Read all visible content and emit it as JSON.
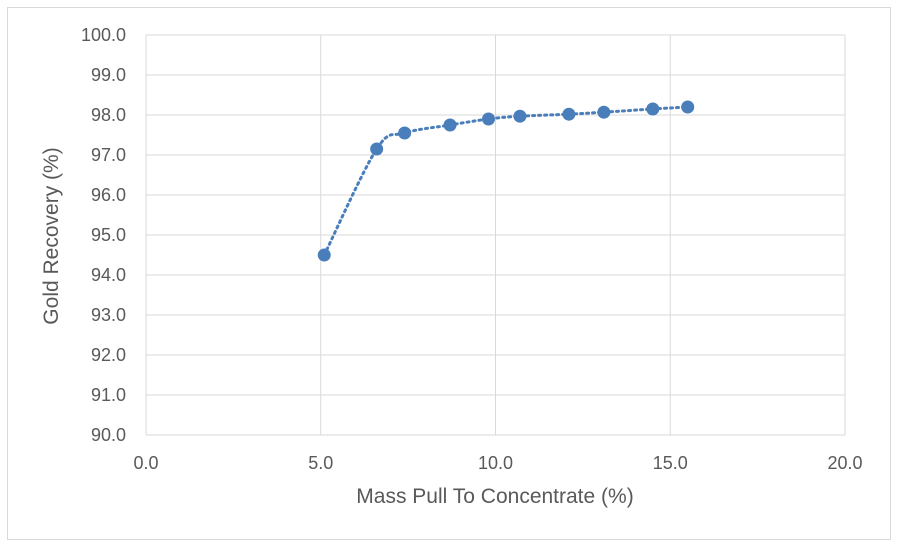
{
  "chart_data": {
    "type": "scatter",
    "xlabel": "Mass Pull To Concentrate (%)",
    "ylabel": "Gold Recovery (%)",
    "xlim": [
      0,
      20
    ],
    "ylim": [
      90,
      100
    ],
    "x_ticks": [
      "0.0",
      "5.0",
      "10.0",
      "15.0",
      "20.0"
    ],
    "y_ticks": [
      "90.0",
      "91.0",
      "92.0",
      "93.0",
      "94.0",
      "95.0",
      "96.0",
      "97.0",
      "98.0",
      "99.0",
      "100.0"
    ],
    "grid": true,
    "legend": "none",
    "series": [
      {
        "color": "#4a7ebb",
        "marker": "circle",
        "line_style": "dotted-smooth",
        "points": [
          {
            "x": 5.1,
            "y": 94.5
          },
          {
            "x": 6.6,
            "y": 97.15
          },
          {
            "x": 7.4,
            "y": 97.55
          },
          {
            "x": 8.7,
            "y": 97.75
          },
          {
            "x": 9.8,
            "y": 97.9
          },
          {
            "x": 10.7,
            "y": 97.97
          },
          {
            "x": 12.1,
            "y": 98.02
          },
          {
            "x": 13.1,
            "y": 98.07
          },
          {
            "x": 14.5,
            "y": 98.15
          },
          {
            "x": 15.5,
            "y": 98.2
          }
        ]
      }
    ],
    "colors": {
      "grid": "#d9d9d9",
      "text": "#595959",
      "marker": "#4a7ebb"
    }
  }
}
